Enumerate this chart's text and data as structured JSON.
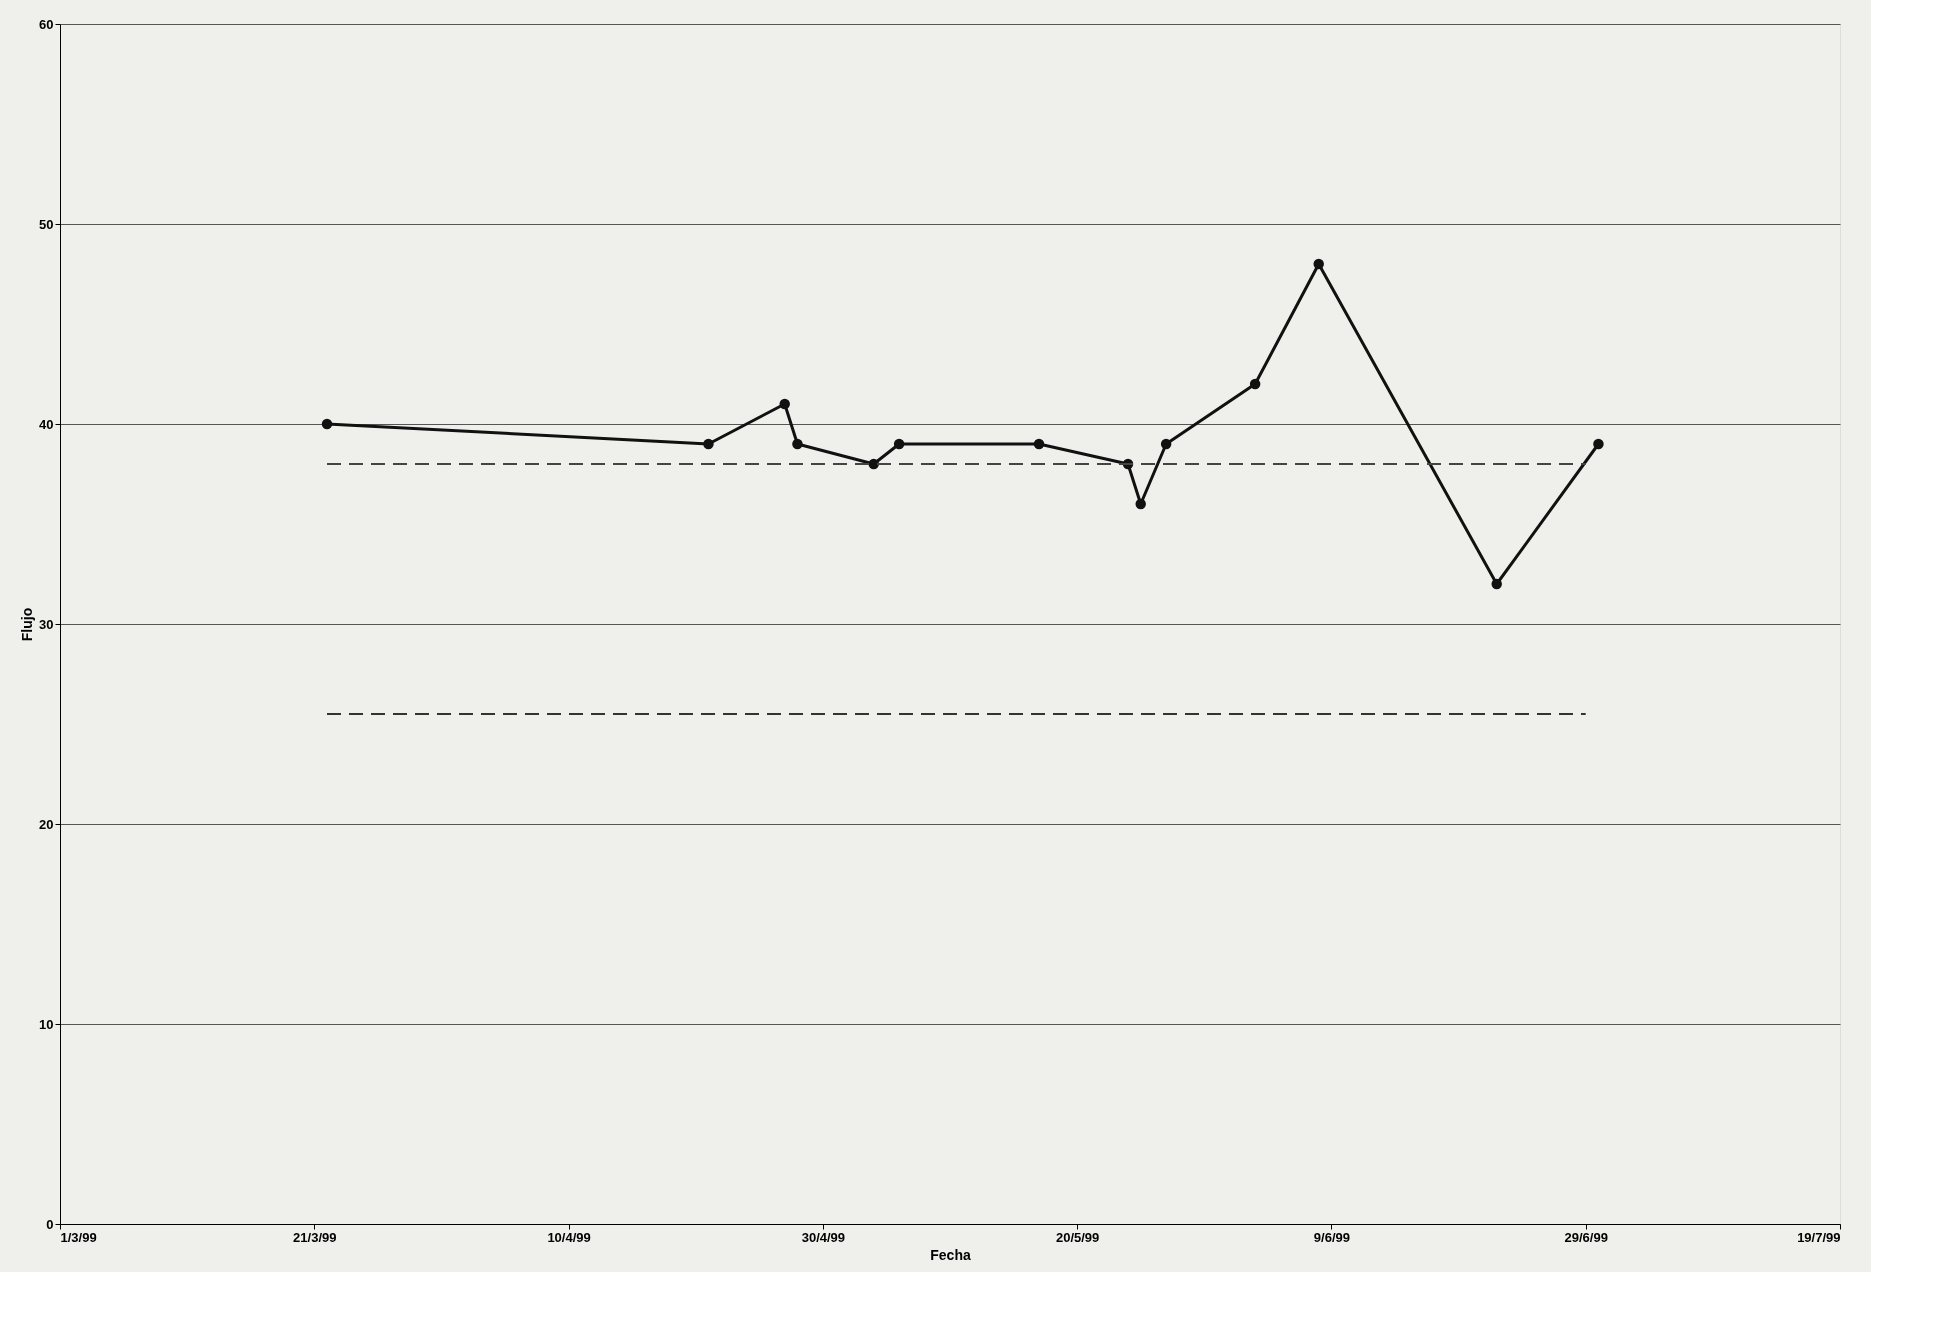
{
  "chart_data": {
    "type": "line",
    "xlabel": "Fecha",
    "ylabel": "Flujo",
    "xlim": [
      "1999-03-01",
      "1999-07-19"
    ],
    "xticks": [
      {
        "value": "1999-03-01",
        "label": "1/3/99"
      },
      {
        "value": "1999-03-21",
        "label": "21/3/99"
      },
      {
        "value": "1999-04-10",
        "label": "10/4/99"
      },
      {
        "value": "1999-04-30",
        "label": "30/4/99"
      },
      {
        "value": "1999-05-20",
        "label": "20/5/99"
      },
      {
        "value": "1999-06-09",
        "label": "9/6/99"
      },
      {
        "value": "1999-06-29",
        "label": "29/6/99"
      },
      {
        "value": "1999-07-19",
        "label": "19/7/99"
      }
    ],
    "ylim": [
      0,
      60
    ],
    "yticks": [
      0,
      10,
      20,
      30,
      40,
      50,
      60
    ],
    "grid": "y",
    "series": [
      {
        "color": "#111111",
        "marker": "circle",
        "line_style": "solid",
        "x": [
          "1999-03-22",
          "1999-04-21",
          "1999-04-27",
          "1999-04-28",
          "1999-05-04",
          "1999-05-06",
          "1999-05-17",
          "1999-05-24",
          "1999-05-25",
          "1999-05-27",
          "1999-06-03",
          "1999-06-08",
          "1999-06-22",
          "1999-06-30"
        ],
        "values": [
          40,
          39,
          41,
          39,
          38,
          39,
          39,
          38,
          36,
          39,
          42,
          48,
          32,
          39
        ]
      },
      {
        "color": "#444444",
        "marker": "none",
        "line_style": "dashed",
        "x": [
          "1999-03-22",
          "1999-06-29"
        ],
        "values": [
          38,
          38
        ]
      },
      {
        "color": "#333333",
        "marker": "none",
        "line_style": "dashed",
        "x": [
          "1999-03-22",
          "1999-06-29"
        ],
        "values": [
          25.5,
          25.5
        ]
      }
    ]
  }
}
